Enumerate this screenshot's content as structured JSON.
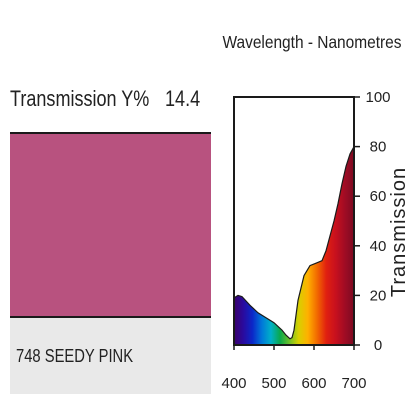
{
  "transmission": {
    "label": "Transmission Y%",
    "value": "14.4"
  },
  "filter": {
    "name": "748 SEEDY PINK",
    "swatch_color": "#b8527f",
    "panel_color": "#e9e9e9"
  },
  "chart_data": {
    "type": "area",
    "title": "Wavelength - Nanometres",
    "xlabel": "",
    "ylabel": "Transmission",
    "xlim": [
      400,
      700
    ],
    "ylim": [
      0,
      100
    ],
    "x_ticks": [
      "400",
      "500",
      "600",
      "700"
    ],
    "y_ticks": [
      "0",
      "20",
      "40",
      "60",
      "80",
      "100"
    ],
    "grid": false,
    "series": [
      {
        "x": [
          400,
          410,
          420,
          440,
          460,
          480,
          500,
          520,
          530,
          540,
          545,
          550,
          560,
          575,
          590,
          605,
          620,
          630,
          640,
          650,
          660,
          670,
          680,
          690,
          700
        ],
        "y": [
          19,
          20,
          19.5,
          16,
          13,
          11,
          9,
          6,
          4,
          2.5,
          3,
          6,
          18,
          28,
          32,
          33,
          34,
          38,
          44,
          50,
          57,
          65,
          72,
          77,
          80
        ]
      }
    ],
    "spectrum_colors": [
      "#3a006a",
      "#2a0a9e",
      "#0b27c8",
      "#0077d9",
      "#00b0c8",
      "#0aa84a",
      "#6cc02a",
      "#d8d000",
      "#ffb000",
      "#f26a00",
      "#e02010",
      "#c8101e",
      "#a00c24",
      "#7c0a22"
    ]
  }
}
